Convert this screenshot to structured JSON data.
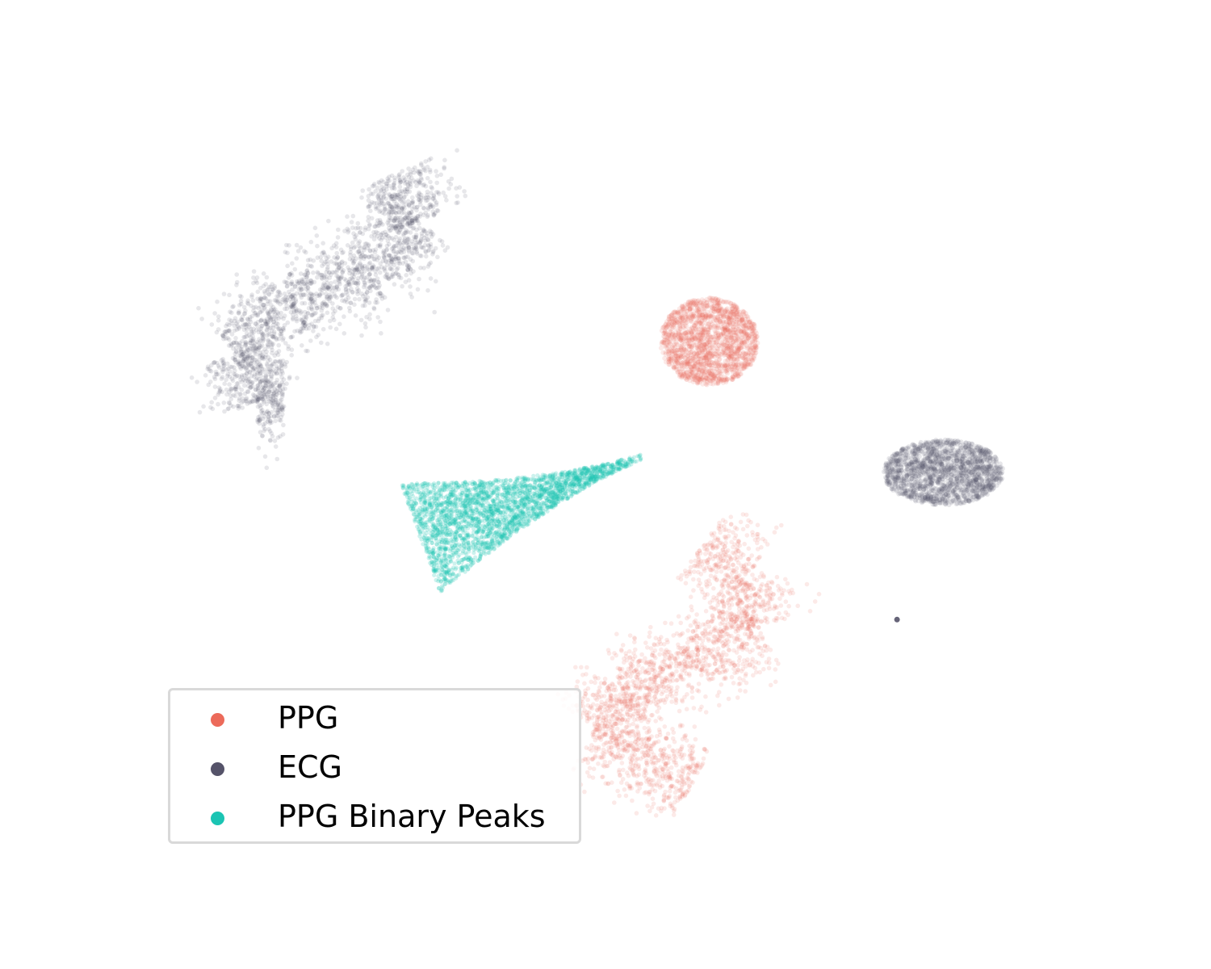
{
  "chart_data": {
    "type": "scatter",
    "title": "",
    "xlabel": "",
    "ylabel": "",
    "axes_visible": false,
    "grid": false,
    "xlim": [
      0,
      20
    ],
    "ylim": [
      0,
      16
    ],
    "legend_position": "lower-left",
    "series": [
      {
        "name": "PPG",
        "color": "#ec6a5a",
        "clusters": [
          {
            "shape": "blob",
            "center": [
              11.9,
              10.4
            ],
            "extent": [
              1.8,
              1.6
            ]
          },
          {
            "shape": "s-curve",
            "path": [
              [
                11.8,
                6.7
              ],
              [
                12.6,
                6.1
              ],
              [
                12.8,
                5.2
              ],
              [
                11.5,
                4.5
              ],
              [
                10.3,
                4.0
              ],
              [
                9.8,
                3.3
              ],
              [
                11.6,
                2.3
              ]
            ]
          }
        ]
      },
      {
        "name": "ECG",
        "color": "#555369",
        "clusters": [
          {
            "shape": "s-curve",
            "path": [
              [
                6.2,
                13.5
              ],
              [
                6.6,
                12.6
              ],
              [
                5.8,
                11.7
              ],
              [
                4.2,
                11.2
              ],
              [
                3.2,
                10.2
              ],
              [
                3.6,
                9.3
              ],
              [
                4.1,
                9.3
              ]
            ]
          },
          {
            "shape": "blob",
            "center": [
              16.2,
              8.0
            ],
            "extent": [
              2.2,
              1.2
            ]
          },
          {
            "shape": "point",
            "center": [
              15.35,
              5.3
            ]
          }
        ]
      },
      {
        "name": "PPG Binary Peaks",
        "color": "#1bc4b3",
        "clusters": [
          {
            "shape": "teardrop",
            "tail": [
              10.7,
              8.3
            ],
            "head": [
              6.6,
              6.8
            ]
          }
        ]
      }
    ]
  }
}
